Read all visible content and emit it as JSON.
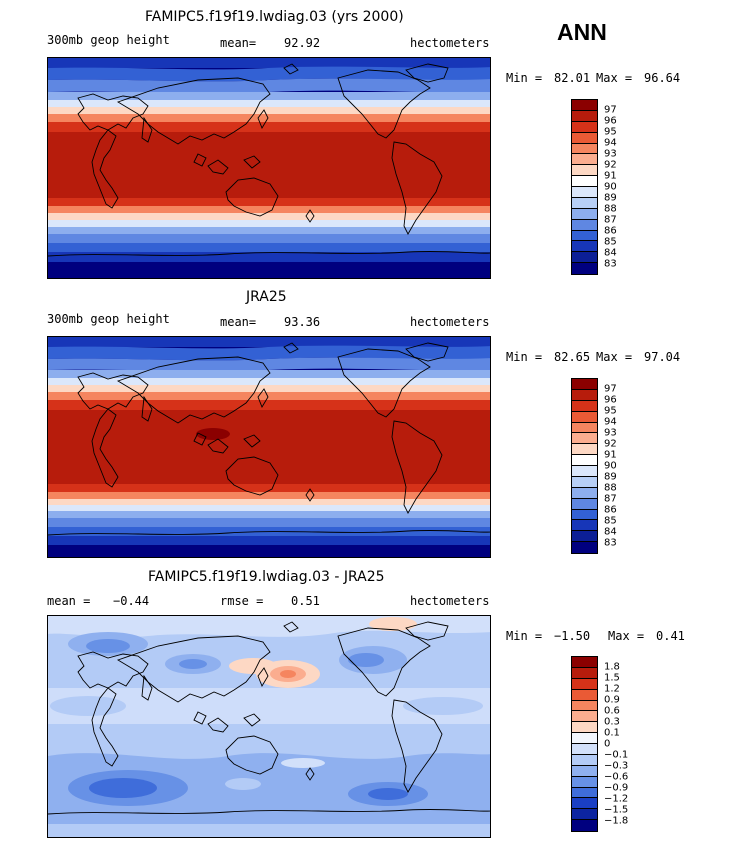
{
  "season": "ANN",
  "panels": [
    {
      "id": "model",
      "title": "FAMIPC5.f19f19.lwdiag.03 (yrs 2000)",
      "left_label": "300mb geop height",
      "mean_label": "mean=",
      "mean_value": "92.92",
      "units": "hectometers",
      "min_label": "Min =",
      "min_value": "82.01",
      "max_label": "Max =",
      "max_value": "96.64",
      "colorbar_labels": [
        "97",
        "96",
        "95",
        "94",
        "93",
        "92",
        "91",
        "90",
        "89",
        "88",
        "87",
        "86",
        "85",
        "84",
        "83"
      ],
      "colorbar_colors": [
        "#8b0000",
        "#b71c0c",
        "#d63219",
        "#ea5a35",
        "#f5855f",
        "#fbad8f",
        "#fdd8c4",
        "#ffffff",
        "#dbe7fb",
        "#b7cff6",
        "#8daeee",
        "#5f87e2",
        "#3361d4",
        "#1736b8",
        "#0c1f96",
        "#00007f"
      ]
    },
    {
      "id": "obs",
      "title": "JRA25",
      "left_label": "300mb geop height",
      "mean_label": "mean=",
      "mean_value": "93.36",
      "units": "hectometers",
      "min_label": "Min =",
      "min_value": "82.65",
      "max_label": "Max =",
      "max_value": "97.04",
      "colorbar_labels": [
        "97",
        "96",
        "95",
        "94",
        "93",
        "92",
        "91",
        "90",
        "89",
        "88",
        "87",
        "86",
        "85",
        "84",
        "83"
      ],
      "colorbar_colors": [
        "#8b0000",
        "#b71c0c",
        "#d63219",
        "#ea5a35",
        "#f5855f",
        "#fbad8f",
        "#fdd8c4",
        "#ffffff",
        "#dbe7fb",
        "#b7cff6",
        "#8daeee",
        "#5f87e2",
        "#3361d4",
        "#1736b8",
        "#0c1f96",
        "#00007f"
      ]
    },
    {
      "id": "diff",
      "title": "FAMIPC5.f19f19.lwdiag.03 - JRA25",
      "mean_label": "mean =",
      "mean_value": "−0.44",
      "rmse_label": "rmse =",
      "rmse_value": "0.51",
      "units": "hectometers",
      "min_label": "Min =",
      "min_value": "−1.50",
      "max_label": "Max =",
      "max_value": "0.41",
      "colorbar_labels": [
        "1.8",
        "1.5",
        "1.2",
        "0.9",
        "0.6",
        "0.3",
        "0.1",
        "0",
        "−0.1",
        "−0.3",
        "−0.6",
        "−0.9",
        "−1.2",
        "−1.5",
        "−1.8"
      ],
      "colorbar_colors": [
        "#8b0000",
        "#b71c0c",
        "#d63219",
        "#ea5a35",
        "#f5855f",
        "#fbad8f",
        "#fdd8c4",
        "#f2f6fd",
        "#d2e0fa",
        "#b3cbf6",
        "#8fb0ef",
        "#6791e6",
        "#3f6dda",
        "#1a3fc4",
        "#0c24a0",
        "#00007f"
      ]
    }
  ]
}
